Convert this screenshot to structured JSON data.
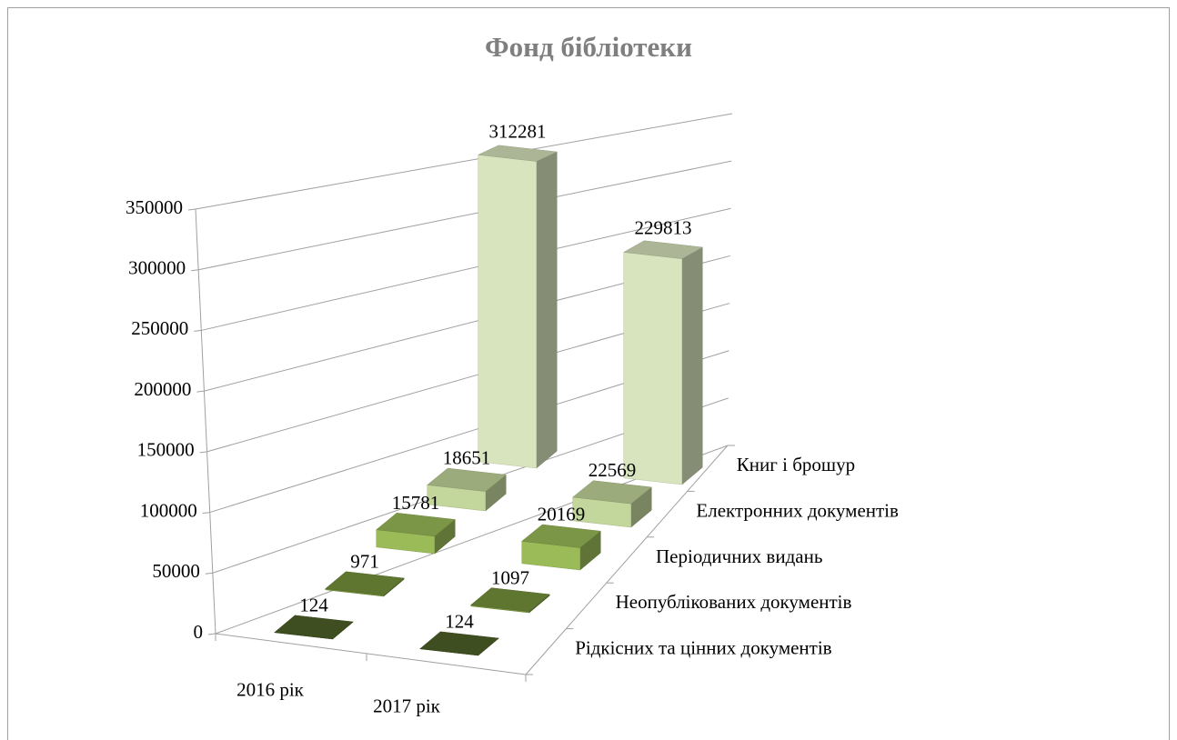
{
  "chart_data": {
    "type": "bar3d",
    "title": "Фонд бібліотеки",
    "categories": [
      "2016 рік",
      "2017 рік"
    ],
    "series": [
      {
        "name": "Рідкісних та цінних документів",
        "color": "#4f6228",
        "values": [
          124,
          124
        ]
      },
      {
        "name": "Неопублікованих документів",
        "color": "#77933c",
        "values": [
          971,
          1097
        ]
      },
      {
        "name": "Періодичних видань",
        "color": "#9bbb59",
        "values": [
          15781,
          20169
        ]
      },
      {
        "name": "Електронних документів",
        "color": "#c3d69b",
        "values": [
          18651,
          22569
        ]
      },
      {
        "name": "Книг і брошур",
        "color": "#d7e4bd",
        "values": [
          312281,
          229813
        ]
      }
    ],
    "ylim": [
      0,
      350000
    ],
    "yticks": [
      0,
      50000,
      100000,
      150000,
      200000,
      250000,
      300000,
      350000
    ],
    "grid": true
  }
}
